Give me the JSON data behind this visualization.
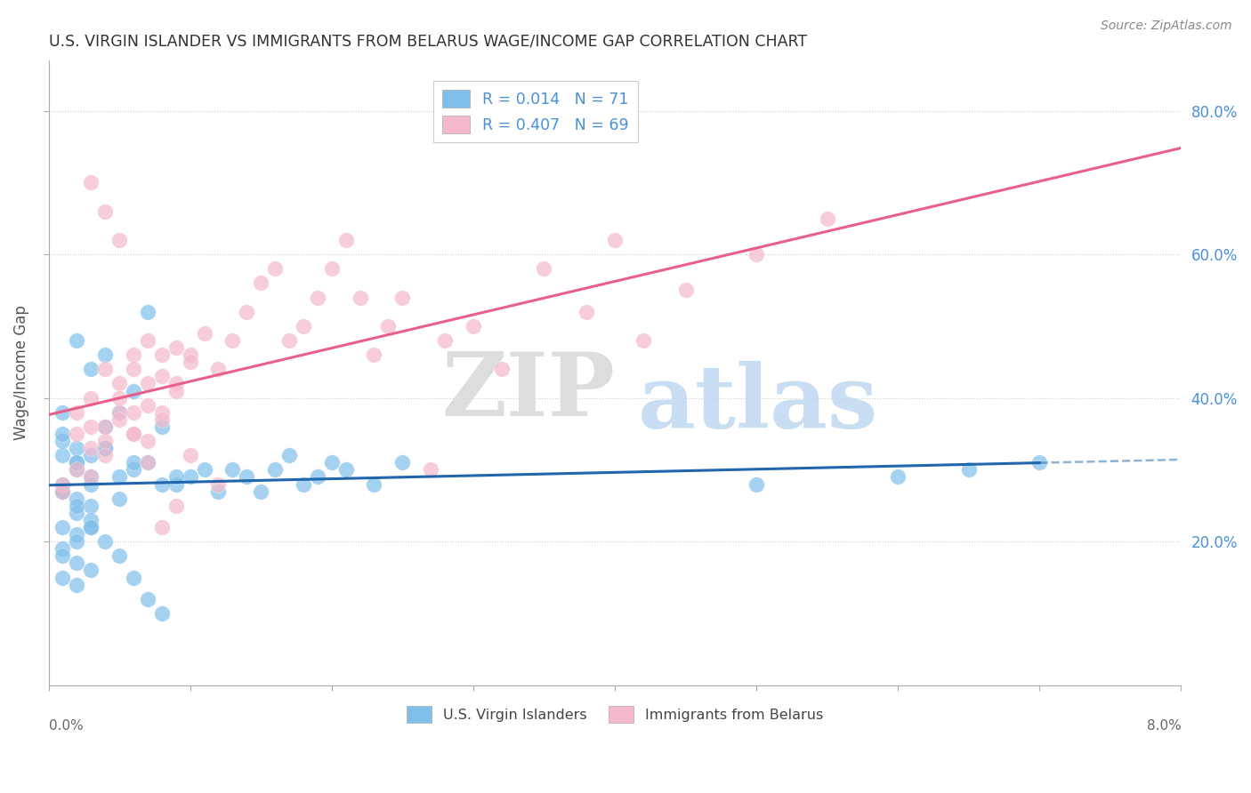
{
  "title": "U.S. VIRGIN ISLANDER VS IMMIGRANTS FROM BELARUS WAGE/INCOME GAP CORRELATION CHART",
  "source": "Source: ZipAtlas.com",
  "ylabel": "Wage/Income Gap",
  "series1_label": "U.S. Virgin Islanders",
  "series1_color": "#7fbfea",
  "series2_label": "Immigrants from Belarus",
  "series2_color": "#f5b8cb",
  "blue_line_color": "#2166ac",
  "pink_line_color": "#e8608a",
  "right_yticks": [
    0.2,
    0.4,
    0.6,
    0.8
  ],
  "watermark_zip": "ZIP",
  "watermark_atlas": "atlas",
  "xmin": 0.0,
  "xmax": 0.08,
  "ymin": 0.0,
  "ymax": 0.87,
  "legend1_label": "R = 0.014   N = 71",
  "legend2_label": "R = 0.407   N = 69",
  "legend_text_color": "#2166ac",
  "legend_n_color": "#cc2244",
  "x1_raw": [
    0.001,
    0.002,
    0.001,
    0.003,
    0.002,
    0.001,
    0.002,
    0.003,
    0.001,
    0.002,
    0.001,
    0.003,
    0.004,
    0.002,
    0.001,
    0.003,
    0.005,
    0.002,
    0.001,
    0.004,
    0.006,
    0.003,
    0.002,
    0.007,
    0.004,
    0.005,
    0.008,
    0.006,
    0.003,
    0.009,
    0.01,
    0.007,
    0.004,
    0.011,
    0.008,
    0.005,
    0.012,
    0.009,
    0.006,
    0.013,
    0.001,
    0.002,
    0.003,
    0.001,
    0.002,
    0.001,
    0.002,
    0.003,
    0.001,
    0.002,
    0.014,
    0.016,
    0.018,
    0.02,
    0.015,
    0.017,
    0.019,
    0.021,
    0.023,
    0.025,
    0.002,
    0.003,
    0.004,
    0.005,
    0.006,
    0.007,
    0.008,
    0.05,
    0.06,
    0.065,
    0.07
  ],
  "y1_raw": [
    0.28,
    0.3,
    0.32,
    0.29,
    0.31,
    0.27,
    0.33,
    0.28,
    0.34,
    0.26,
    0.35,
    0.25,
    0.36,
    0.24,
    0.38,
    0.22,
    0.29,
    0.31,
    0.27,
    0.33,
    0.41,
    0.44,
    0.48,
    0.52,
    0.46,
    0.38,
    0.36,
    0.3,
    0.32,
    0.28,
    0.29,
    0.31,
    0.33,
    0.3,
    0.28,
    0.26,
    0.27,
    0.29,
    0.31,
    0.3,
    0.19,
    0.21,
    0.23,
    0.18,
    0.2,
    0.22,
    0.17,
    0.16,
    0.15,
    0.14,
    0.29,
    0.3,
    0.28,
    0.31,
    0.27,
    0.32,
    0.29,
    0.3,
    0.28,
    0.31,
    0.25,
    0.22,
    0.2,
    0.18,
    0.15,
    0.12,
    0.1,
    0.28,
    0.29,
    0.3,
    0.31
  ],
  "x2_raw": [
    0.001,
    0.002,
    0.003,
    0.001,
    0.002,
    0.003,
    0.004,
    0.002,
    0.003,
    0.004,
    0.005,
    0.003,
    0.004,
    0.005,
    0.006,
    0.004,
    0.005,
    0.006,
    0.007,
    0.005,
    0.006,
    0.007,
    0.008,
    0.006,
    0.007,
    0.008,
    0.009,
    0.007,
    0.008,
    0.009,
    0.01,
    0.008,
    0.009,
    0.01,
    0.011,
    0.012,
    0.013,
    0.014,
    0.015,
    0.016,
    0.017,
    0.018,
    0.019,
    0.02,
    0.021,
    0.022,
    0.023,
    0.024,
    0.025,
    0.03,
    0.035,
    0.04,
    0.045,
    0.05,
    0.055,
    0.038,
    0.042,
    0.032,
    0.028,
    0.027,
    0.003,
    0.004,
    0.005,
    0.006,
    0.007,
    0.008,
    0.009,
    0.01,
    0.012
  ],
  "y2_raw": [
    0.28,
    0.3,
    0.33,
    0.27,
    0.35,
    0.29,
    0.32,
    0.38,
    0.4,
    0.34,
    0.42,
    0.36,
    0.44,
    0.38,
    0.46,
    0.36,
    0.4,
    0.44,
    0.48,
    0.37,
    0.38,
    0.42,
    0.46,
    0.35,
    0.39,
    0.43,
    0.47,
    0.34,
    0.38,
    0.42,
    0.46,
    0.37,
    0.41,
    0.45,
    0.49,
    0.44,
    0.48,
    0.52,
    0.56,
    0.58,
    0.48,
    0.5,
    0.54,
    0.58,
    0.62,
    0.54,
    0.46,
    0.5,
    0.54,
    0.5,
    0.58,
    0.62,
    0.55,
    0.6,
    0.65,
    0.52,
    0.48,
    0.44,
    0.48,
    0.3,
    0.7,
    0.66,
    0.62,
    0.35,
    0.31,
    0.22,
    0.25,
    0.32,
    0.28
  ]
}
